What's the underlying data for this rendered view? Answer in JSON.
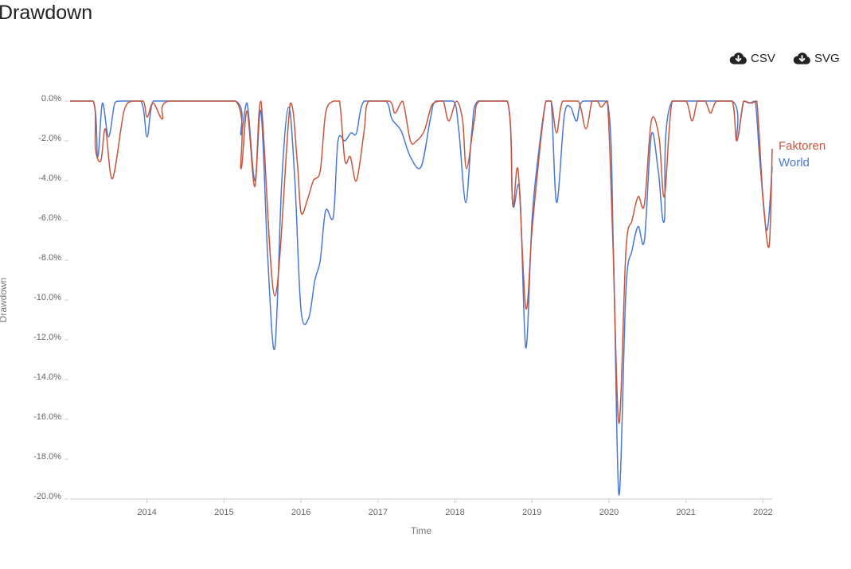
{
  "header": {
    "title": "Drawdown"
  },
  "toolbar": {
    "csv_label": "CSV",
    "csv_icon": "cloud-download-icon",
    "svg_label": "SVG",
    "svg_icon": "cloud-download-icon"
  },
  "chart_data": {
    "type": "line",
    "xlabel": "Time",
    "ylabel": "Drawdown",
    "ylim": [
      -20,
      0
    ],
    "xlim": [
      2013.0,
      2022.12
    ],
    "x_ticks": [
      {
        "value": 2014,
        "label": "2014"
      },
      {
        "value": 2015,
        "label": "2015"
      },
      {
        "value": 2016,
        "label": "2016"
      },
      {
        "value": 2017,
        "label": "2017"
      },
      {
        "value": 2018,
        "label": "2018"
      },
      {
        "value": 2019,
        "label": "2019"
      },
      {
        "value": 2020,
        "label": "2020"
      },
      {
        "value": 2021,
        "label": "2021"
      },
      {
        "value": 2022,
        "label": "2022"
      }
    ],
    "y_ticks": [
      {
        "value": 0,
        "label": "0.0%"
      },
      {
        "value": -2,
        "label": "-2.0%"
      },
      {
        "value": -4,
        "label": "-4.0%"
      },
      {
        "value": -6,
        "label": "-6.0%"
      },
      {
        "value": -8,
        "label": "-8.0%"
      },
      {
        "value": -10,
        "label": "-10.0%"
      },
      {
        "value": -12,
        "label": "-12.0%"
      },
      {
        "value": -14,
        "label": "-14.0%"
      },
      {
        "value": -16,
        "label": "-16.0%"
      },
      {
        "value": -18,
        "label": "-18.0%"
      },
      {
        "value": -20,
        "label": "-20.0%"
      }
    ],
    "grid": false,
    "legend_position": "right-end",
    "series": [
      {
        "name": "Faktoren",
        "color": "#c8553d",
        "points": [
          [
            2013.0,
            0
          ],
          [
            2013.3,
            0
          ],
          [
            2013.33,
            -2.4
          ],
          [
            2013.4,
            -3.0
          ],
          [
            2013.46,
            -1.4
          ],
          [
            2013.55,
            -3.9
          ],
          [
            2013.7,
            -0.5
          ],
          [
            2013.8,
            0
          ],
          [
            2013.95,
            0
          ],
          [
            2014.0,
            -0.8
          ],
          [
            2014.08,
            -0.1
          ],
          [
            2014.2,
            -0.9
          ],
          [
            2014.28,
            0
          ],
          [
            2015.15,
            0
          ],
          [
            2015.22,
            -3.4
          ],
          [
            2015.3,
            -0.5
          ],
          [
            2015.4,
            -4.3
          ],
          [
            2015.48,
            0
          ],
          [
            2015.66,
            -9.8
          ],
          [
            2015.86,
            -0.1
          ],
          [
            2015.95,
            -3.0
          ],
          [
            2016.0,
            -5.6
          ],
          [
            2016.08,
            -5.0
          ],
          [
            2016.16,
            -4.0
          ],
          [
            2016.25,
            -3.5
          ],
          [
            2016.32,
            -0.6
          ],
          [
            2016.42,
            0
          ],
          [
            2016.5,
            0
          ],
          [
            2016.57,
            -3.0
          ],
          [
            2016.64,
            -2.8
          ],
          [
            2016.72,
            -4.0
          ],
          [
            2016.82,
            -1.5
          ],
          [
            2016.88,
            0
          ],
          [
            2017.15,
            0
          ],
          [
            2017.22,
            -0.6
          ],
          [
            2017.32,
            0
          ],
          [
            2017.42,
            -2.0
          ],
          [
            2017.5,
            -2.0
          ],
          [
            2017.6,
            -1.5
          ],
          [
            2017.7,
            -0.2
          ],
          [
            2017.8,
            0
          ],
          [
            2017.85,
            0
          ],
          [
            2017.92,
            -1.0
          ],
          [
            2018.02,
            0
          ],
          [
            2018.1,
            -1.0
          ],
          [
            2018.15,
            -3.4
          ],
          [
            2018.25,
            -1.0
          ],
          [
            2018.32,
            0
          ],
          [
            2018.68,
            0
          ],
          [
            2018.75,
            -5.2
          ],
          [
            2018.82,
            -3.5
          ],
          [
            2018.92,
            -10.4
          ],
          [
            2019.0,
            -6.5
          ],
          [
            2019.1,
            -2.5
          ],
          [
            2019.18,
            0
          ],
          [
            2019.25,
            0
          ],
          [
            2019.32,
            -1.6
          ],
          [
            2019.4,
            0
          ],
          [
            2019.6,
            0
          ],
          [
            2019.7,
            -1.4
          ],
          [
            2019.78,
            0
          ],
          [
            2019.85,
            0
          ],
          [
            2019.9,
            -0.3
          ],
          [
            2019.98,
            0
          ],
          [
            2020.05,
            -7.0
          ],
          [
            2020.13,
            -16.2
          ],
          [
            2020.22,
            -7.5
          ],
          [
            2020.3,
            -6.0
          ],
          [
            2020.38,
            -4.8
          ],
          [
            2020.46,
            -5.2
          ],
          [
            2020.55,
            -1.0
          ],
          [
            2020.65,
            -1.8
          ],
          [
            2020.72,
            -4.8
          ],
          [
            2020.82,
            0
          ],
          [
            2021.0,
            0
          ],
          [
            2021.08,
            -1.0
          ],
          [
            2021.15,
            0
          ],
          [
            2021.25,
            0
          ],
          [
            2021.32,
            -0.6
          ],
          [
            2021.4,
            0
          ],
          [
            2021.6,
            0
          ],
          [
            2021.66,
            -2.0
          ],
          [
            2021.75,
            0
          ],
          [
            2021.85,
            -0.1
          ],
          [
            2021.92,
            0
          ],
          [
            2022.0,
            -4.8
          ],
          [
            2022.08,
            -7.3
          ],
          [
            2022.12,
            -2.4
          ]
        ]
      },
      {
        "name": "World",
        "color": "#4a78d6",
        "points": [
          [
            2013.0,
            0
          ],
          [
            2013.3,
            0
          ],
          [
            2013.36,
            -2.8
          ],
          [
            2013.42,
            -0.1
          ],
          [
            2013.5,
            -1.8
          ],
          [
            2013.58,
            -0.1
          ],
          [
            2013.65,
            0
          ],
          [
            2013.92,
            0
          ],
          [
            2014.0,
            -1.8
          ],
          [
            2014.08,
            0
          ],
          [
            2014.3,
            0
          ],
          [
            2015.15,
            0
          ],
          [
            2015.22,
            -1.7
          ],
          [
            2015.3,
            -0.1
          ],
          [
            2015.4,
            -4.0
          ],
          [
            2015.48,
            -0.5
          ],
          [
            2015.57,
            -8.0
          ],
          [
            2015.66,
            -12.4
          ],
          [
            2015.75,
            -4.0
          ],
          [
            2015.84,
            -0.3
          ],
          [
            2015.92,
            -4.0
          ],
          [
            2016.0,
            -10.5
          ],
          [
            2016.1,
            -10.9
          ],
          [
            2016.18,
            -9.0
          ],
          [
            2016.25,
            -8.0
          ],
          [
            2016.32,
            -5.5
          ],
          [
            2016.42,
            -5.8
          ],
          [
            2016.48,
            -2.0
          ],
          [
            2016.57,
            -2.0
          ],
          [
            2016.65,
            -1.6
          ],
          [
            2016.72,
            -1.6
          ],
          [
            2016.82,
            0
          ],
          [
            2017.1,
            0
          ],
          [
            2017.18,
            -0.9
          ],
          [
            2017.3,
            -1.5
          ],
          [
            2017.42,
            -2.8
          ],
          [
            2017.56,
            -3.3
          ],
          [
            2017.68,
            -0.9
          ],
          [
            2017.75,
            0
          ],
          [
            2017.98,
            0
          ],
          [
            2018.05,
            -1.5
          ],
          [
            2018.14,
            -5.1
          ],
          [
            2018.22,
            -1.5
          ],
          [
            2018.3,
            0
          ],
          [
            2018.68,
            0
          ],
          [
            2018.75,
            -5.2
          ],
          [
            2018.84,
            -4.5
          ],
          [
            2018.92,
            -12.4
          ],
          [
            2019.0,
            -6.0
          ],
          [
            2019.08,
            -2.8
          ],
          [
            2019.18,
            0
          ],
          [
            2019.25,
            0
          ],
          [
            2019.32,
            -5.1
          ],
          [
            2019.42,
            -0.7
          ],
          [
            2019.5,
            -0.3
          ],
          [
            2019.58,
            -1.0
          ],
          [
            2019.66,
            0
          ],
          [
            2019.98,
            0
          ],
          [
            2020.06,
            -8.0
          ],
          [
            2020.13,
            -19.8
          ],
          [
            2020.22,
            -9.5
          ],
          [
            2020.3,
            -7.5
          ],
          [
            2020.38,
            -6.3
          ],
          [
            2020.46,
            -7.0
          ],
          [
            2020.55,
            -1.7
          ],
          [
            2020.64,
            -3.5
          ],
          [
            2020.72,
            -6.0
          ],
          [
            2020.82,
            0
          ],
          [
            2021.6,
            0
          ],
          [
            2021.66,
            -2.0
          ],
          [
            2021.75,
            0
          ],
          [
            2021.82,
            -0.1
          ],
          [
            2021.9,
            0
          ],
          [
            2021.96,
            -3.0
          ],
          [
            2022.05,
            -6.5
          ],
          [
            2022.12,
            -3.3
          ]
        ]
      }
    ]
  }
}
